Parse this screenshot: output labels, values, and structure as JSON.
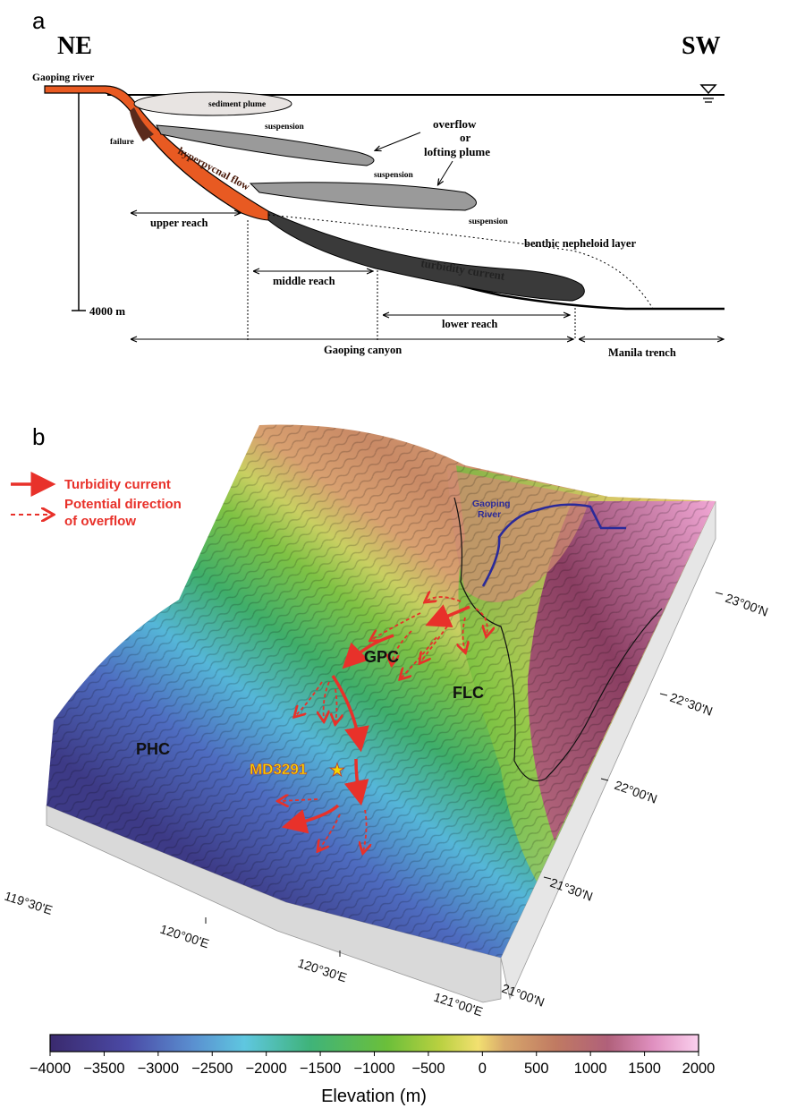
{
  "panel_a": {
    "label": "a",
    "ne": "NE",
    "sw": "SW",
    "river": "Gaoping river",
    "sediment_plume": "sediment plume",
    "suspension": "suspension",
    "overflow_1": "overflow",
    "overflow_2": "or",
    "overflow_3": "lofting plume",
    "failure": "failure",
    "hyperpycnal": "hyperpycnal flow",
    "turbidity": "turbidity current",
    "benthic": "benthic nepheloid layer",
    "upper": "upper reach",
    "middle": "middle reach",
    "lower": "lower reach",
    "canyon": "Gaoping canyon",
    "trench": "Manila trench",
    "depth": "4000 m"
  },
  "panel_b": {
    "label": "b",
    "legend_solid": "Turbidity current",
    "legend_dashed_1": "Potential direction",
    "legend_dashed_2": "of overflow",
    "river_1": "Gaoping",
    "river_2": "River",
    "gpc": "GPC",
    "flc": "FLC",
    "phc": "PHC",
    "site": "MD3291",
    "lat_labels": [
      "23°00'N",
      "22°30'N",
      "22°00'N",
      "21°30'N",
      "21°00'N"
    ],
    "lon_labels": [
      "119°30'E",
      "120°00'E",
      "120°30'E",
      "121°00'E"
    ],
    "colorbar_ticks": [
      "-4000",
      "-3500",
      "-3000",
      "-2500",
      "-2000",
      "-1500",
      "-1000",
      "-500",
      "0",
      "500",
      "1000",
      "1500",
      "2000"
    ],
    "colorbar_title": "Elevation (m)",
    "colors": {
      "arrow": "#e8312a",
      "river": "#2a2a9a",
      "site": "#f5d800",
      "colorbar": [
        "#3a2a6e",
        "#4b4aa6",
        "#5a8fd0",
        "#5fc7e0",
        "#3fb37a",
        "#6bbf3a",
        "#b8d040",
        "#f2e070",
        "#d8a86c",
        "#c07a62",
        "#b0607a",
        "#e090c0",
        "#fbd0ee"
      ]
    }
  }
}
